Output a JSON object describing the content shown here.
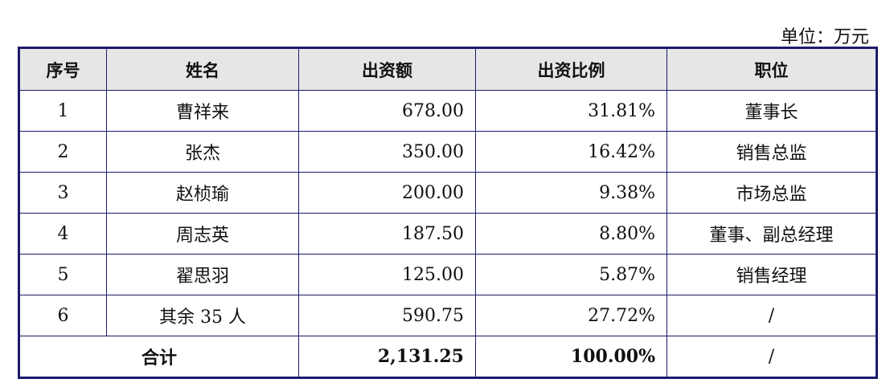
{
  "unit": "单位：万元",
  "headers": [
    "序号",
    "姓名",
    "出资额",
    "出资比例",
    "职位"
  ],
  "rows": [
    [
      "1",
      "曹祥来",
      "678.00",
      "31.81%",
      "董事长"
    ],
    [
      "2",
      "张杰",
      "350.00",
      "16.42%",
      "销售总监"
    ],
    [
      "3",
      "赵桢瑜",
      "200.00",
      "9.38%",
      "市场总监"
    ],
    [
      "4",
      "周志英",
      "187.50",
      "8.80%",
      "董事、副总经理"
    ],
    [
      "5",
      "翟思羽",
      "125.00",
      "5.87%",
      "销售经理"
    ],
    [
      "6",
      "其余 35 人",
      "590.75",
      "27.72%",
      "/"
    ]
  ],
  "total": {
    "label": "合计",
    "amount": "2,131.25",
    "ratio": "100.00%",
    "position": "/"
  },
  "colors": {
    "border": "#1c1a6b",
    "header_bg": "#e6e6e6"
  }
}
